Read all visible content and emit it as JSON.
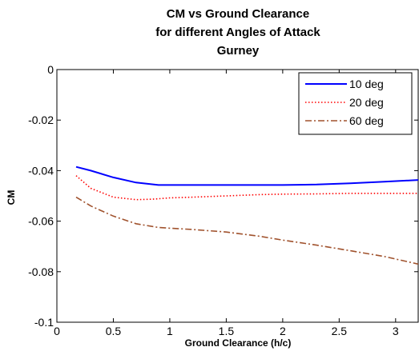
{
  "chart_data": {
    "type": "line",
    "title_lines": [
      "CM vs Ground Clearance",
      "for different Angles of Attack",
      "Gurney"
    ],
    "xlabel": "Ground Clearance (h/c)",
    "ylabel": "CM",
    "xlim": [
      0,
      3.2
    ],
    "ylim": [
      -0.1,
      0
    ],
    "x_ticks": [
      0,
      0.5,
      1,
      1.5,
      2,
      2.5,
      3
    ],
    "x_tick_labels": [
      "0",
      "0.5",
      "1",
      "1.5",
      "2",
      "2.5",
      "3"
    ],
    "y_ticks": [
      0,
      -0.02,
      -0.04,
      -0.06,
      -0.08,
      -0.1
    ],
    "y_tick_labels": [
      "0",
      "-0.02",
      "-0.04",
      "-0.06",
      "-0.08",
      "-0.1"
    ],
    "grid": false,
    "legend_position": "top-right",
    "series": [
      {
        "name": "10 deg",
        "color": "#0000ff",
        "style": "solid",
        "x": [
          0.17,
          0.3,
          0.5,
          0.7,
          0.9,
          1.0,
          1.2,
          1.5,
          1.8,
          2.0,
          2.3,
          2.6,
          2.9,
          3.2
        ],
        "y": [
          -0.0385,
          -0.04,
          -0.0427,
          -0.0447,
          -0.0457,
          -0.0457,
          -0.0457,
          -0.0457,
          -0.0457,
          -0.0457,
          -0.0455,
          -0.045,
          -0.0444,
          -0.0437
        ]
      },
      {
        "name": "20 deg",
        "color": "#ff0000",
        "style": "dotted",
        "x": [
          0.17,
          0.3,
          0.5,
          0.7,
          0.85,
          1.0,
          1.2,
          1.5,
          1.8,
          2.0,
          2.3,
          2.6,
          2.9,
          3.2
        ],
        "y": [
          -0.042,
          -0.047,
          -0.0505,
          -0.0515,
          -0.0513,
          -0.0508,
          -0.0505,
          -0.05,
          -0.0495,
          -0.0493,
          -0.0492,
          -0.049,
          -0.049,
          -0.049
        ]
      },
      {
        "name": "60 deg",
        "color": "#a0522d",
        "style": "dashdot",
        "x": [
          0.17,
          0.3,
          0.5,
          0.7,
          0.9,
          1.0,
          1.2,
          1.5,
          1.8,
          2.0,
          2.3,
          2.6,
          2.9,
          3.2
        ],
        "y": [
          -0.0505,
          -0.054,
          -0.058,
          -0.061,
          -0.0625,
          -0.0628,
          -0.0633,
          -0.0643,
          -0.066,
          -0.0675,
          -0.0695,
          -0.0717,
          -0.074,
          -0.077
        ]
      }
    ]
  }
}
